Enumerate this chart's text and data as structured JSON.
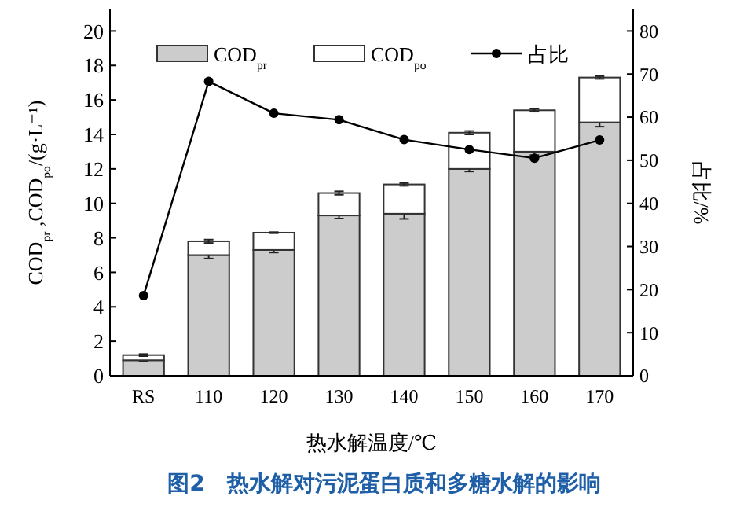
{
  "chart_data": {
    "type": "bar",
    "stacked": true,
    "title": "图2　热水解对污泥蛋白质和多糖水解的影响",
    "xlabel": "热水解温度/℃",
    "ylabel": "COD$_{pr}$ ,COD$_{po}$/(g·L⁻¹)",
    "y2label": "占比/%",
    "categories": [
      "RS",
      "110",
      "120",
      "130",
      "140",
      "150",
      "160",
      "170"
    ],
    "series": [
      {
        "name": "COD$_{pr}$",
        "color": "#cccccc",
        "values": [
          0.9,
          7.0,
          7.3,
          9.3,
          9.4,
          12.0,
          13.0,
          14.7
        ],
        "errors": [
          0.08,
          0.2,
          0.15,
          0.18,
          0.3,
          0.15,
          0.2,
          0.25
        ]
      },
      {
        "name": "COD$_{po}$",
        "color": "#ffffff",
        "values": [
          0.3,
          0.8,
          1.0,
          1.3,
          1.7,
          2.1,
          2.4,
          2.6
        ],
        "errors": [
          0.06,
          0.1,
          0.03,
          0.1,
          0.08,
          0.1,
          0.08,
          0.08
        ]
      },
      {
        "name": "占比",
        "type": "line",
        "axis": "y2",
        "color": "#000000",
        "values": [
          18.6,
          68.3,
          60.9,
          59.4,
          54.8,
          52.5,
          50.5,
          54.7
        ]
      }
    ],
    "ylim": [
      0,
      21.25
    ],
    "yticks": [
      0,
      2,
      4,
      6,
      8,
      10,
      12,
      14,
      16,
      18,
      20
    ],
    "y2lim": [
      0,
      85
    ],
    "y2ticks": [
      0,
      10,
      20,
      30,
      40,
      50,
      60,
      70,
      80
    ],
    "grid": false,
    "legend": "top",
    "marker": "circle",
    "line_style": "solid"
  }
}
